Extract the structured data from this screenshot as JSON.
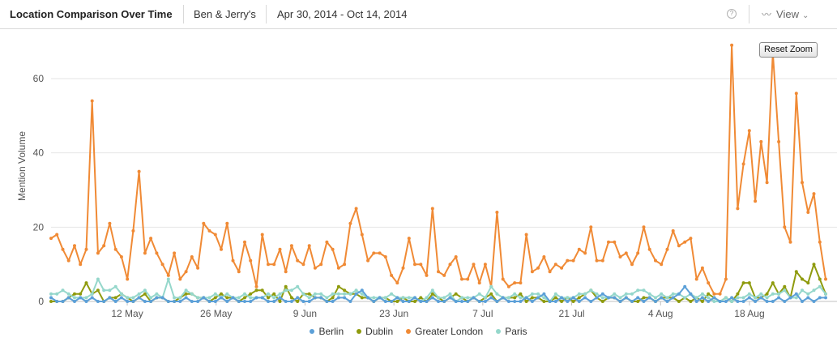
{
  "header": {
    "title": "Location Comparison Over Time",
    "brand": "Ben & Jerry's",
    "date_range": "Apr 30, 2014 - Oct 14, 2014",
    "help_icon": "question-circle-icon",
    "view_icon": "line-chart-icon",
    "view_label": "View",
    "view_chevron": "chevron-down-icon"
  },
  "reset_zoom_label": "Reset Zoom",
  "colors": {
    "Berlin": "#5ca0d8",
    "Dublin": "#8f9b0e",
    "Greater London": "#f08a35",
    "Paris": "#95d7cb"
  },
  "chart_data": {
    "type": "line",
    "title": "",
    "xlabel": "",
    "ylabel": "Mention Volume",
    "ylim": [
      0,
      70
    ],
    "yticks": [
      0,
      20,
      40,
      60
    ],
    "grid": true,
    "legend_position": "bottom",
    "x_start": "2014-04-30",
    "x_end": "2014-08-30",
    "x_ticks": [
      {
        "date": "2014-05-12",
        "label": "12 May"
      },
      {
        "date": "2014-05-26",
        "label": "26 May"
      },
      {
        "date": "2014-06-09",
        "label": "9 Jun"
      },
      {
        "date": "2014-06-23",
        "label": "23 Jun"
      },
      {
        "date": "2014-07-07",
        "label": "7 Jul"
      },
      {
        "date": "2014-07-21",
        "label": "21 Jul"
      },
      {
        "date": "2014-08-04",
        "label": "4 Aug"
      },
      {
        "date": "2014-08-18",
        "label": "18 Aug"
      }
    ],
    "series": [
      {
        "name": "Greater London",
        "values": [
          17,
          18,
          14,
          11,
          15,
          10,
          14,
          54,
          13,
          15,
          21,
          14,
          12,
          6,
          19,
          35,
          13,
          17,
          13,
          10,
          7,
          13,
          6,
          8,
          12,
          9,
          21,
          19,
          18,
          14,
          21,
          11,
          8,
          16,
          11,
          4,
          18,
          10,
          10,
          14,
          8,
          15,
          11,
          10,
          15,
          9,
          10,
          16,
          14,
          9,
          10,
          21,
          25,
          18,
          11,
          13,
          13,
          12,
          7,
          5,
          9,
          17,
          10,
          10,
          7,
          25,
          8,
          7,
          10,
          12,
          6,
          6,
          10,
          5,
          10,
          4,
          24,
          6,
          4,
          5,
          5,
          18,
          8,
          9,
          12,
          8,
          10,
          9,
          11,
          11,
          14,
          13,
          20,
          11,
          11,
          16,
          16,
          12,
          13,
          10,
          13,
          20,
          14,
          11,
          10,
          14,
          19,
          15,
          16,
          17,
          6,
          9,
          5,
          2,
          2,
          6,
          69,
          25,
          37,
          46,
          27,
          43,
          32,
          67,
          43,
          20,
          16,
          56,
          32,
          24,
          29,
          16,
          6
        ]
      },
      {
        "name": "Dublin",
        "values": [
          0,
          0,
          0,
          1,
          2,
          2,
          5,
          2,
          3,
          0,
          1,
          1,
          2,
          1,
          0,
          1,
          2,
          0,
          1,
          1,
          0,
          0,
          1,
          2,
          2,
          1,
          1,
          0,
          1,
          2,
          1,
          1,
          0,
          1,
          2,
          3,
          3,
          1,
          2,
          0,
          4,
          1,
          0,
          2,
          2,
          1,
          1,
          0,
          1,
          4,
          3,
          2,
          2,
          1,
          1,
          0,
          1,
          1,
          0,
          0,
          1,
          0,
          0,
          1,
          0,
          2,
          1,
          0,
          1,
          2,
          1,
          0,
          1,
          0,
          1,
          2,
          0,
          1,
          1,
          1,
          2,
          0,
          1,
          1,
          0,
          0,
          1,
          0,
          1,
          0,
          1,
          2,
          3,
          1,
          0,
          1,
          1,
          0,
          1,
          0,
          0,
          1,
          1,
          0,
          1,
          1,
          1,
          0,
          1,
          0,
          1,
          0,
          2,
          1,
          0,
          1,
          0,
          2,
          5,
          5,
          1,
          1,
          2,
          5,
          2,
          4,
          1,
          8,
          6,
          5,
          10,
          6,
          2
        ]
      },
      {
        "name": "Paris",
        "values": [
          2,
          2,
          3,
          2,
          1,
          1,
          1,
          2,
          6,
          3,
          3,
          4,
          2,
          1,
          1,
          2,
          3,
          1,
          2,
          1,
          6,
          1,
          1,
          3,
          2,
          1,
          1,
          1,
          2,
          1,
          2,
          1,
          1,
          2,
          1,
          1,
          1,
          2,
          1,
          2,
          3,
          3,
          4,
          2,
          1,
          2,
          2,
          1,
          2,
          2,
          2,
          2,
          3,
          2,
          1,
          1,
          1,
          1,
          2,
          1,
          1,
          1,
          1,
          0,
          1,
          3,
          1,
          1,
          2,
          0,
          1,
          1,
          1,
          2,
          1,
          4,
          2,
          1,
          1,
          2,
          1,
          1,
          2,
          2,
          1,
          0,
          2,
          1,
          1,
          1,
          2,
          2,
          3,
          2,
          1,
          1,
          2,
          1,
          2,
          2,
          3,
          3,
          2,
          1,
          2,
          1,
          2,
          2,
          1,
          2,
          1,
          2,
          1,
          0,
          0,
          1,
          0,
          1,
          1,
          2,
          1,
          2,
          1,
          2,
          2,
          3,
          1,
          1,
          3,
          2,
          3,
          4,
          2
        ]
      },
      {
        "name": "Berlin",
        "values": [
          1,
          0,
          0,
          1,
          0,
          1,
          0,
          1,
          0,
          0,
          1,
          0,
          1,
          0,
          0,
          1,
          0,
          0,
          1,
          1,
          0,
          0,
          0,
          1,
          0,
          0,
          1,
          0,
          0,
          1,
          0,
          1,
          0,
          0,
          0,
          1,
          1,
          0,
          0,
          1,
          0,
          0,
          1,
          0,
          0,
          1,
          1,
          0,
          0,
          1,
          1,
          0,
          2,
          3,
          1,
          0,
          1,
          0,
          0,
          1,
          0,
          0,
          1,
          0,
          0,
          1,
          0,
          0,
          1,
          0,
          0,
          0,
          1,
          0,
          0,
          1,
          0,
          1,
          0,
          0,
          0,
          1,
          0,
          1,
          2,
          0,
          0,
          1,
          0,
          1,
          0,
          1,
          0,
          1,
          2,
          1,
          1,
          0,
          1,
          0,
          1,
          0,
          1,
          0,
          1,
          0,
          1,
          2,
          4,
          2,
          0,
          1,
          0,
          1,
          0,
          0,
          1,
          0,
          0,
          1,
          0,
          1,
          0,
          0,
          1,
          0,
          1,
          2,
          0,
          1,
          0,
          1,
          1
        ]
      }
    ],
    "legend": [
      "Berlin",
      "Dublin",
      "Greater London",
      "Paris"
    ]
  }
}
